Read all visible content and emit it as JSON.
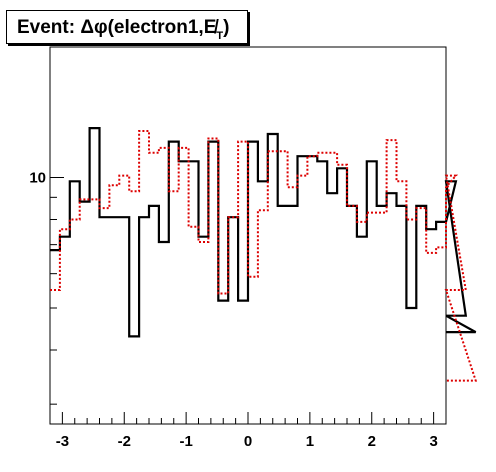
{
  "chart_data": {
    "type": "histogram-step",
    "title": {
      "prefix": "Event: ",
      "symbol": "Δφ(electron1,",
      "met": "E̸",
      "met_sub": "T",
      "suffix": ")"
    },
    "xlabel": "",
    "ylabel": "",
    "xlim": [
      -3.2,
      3.2
    ],
    "ylim": [
      2.7,
      20
    ],
    "log_y": true,
    "x_ticks": [
      {
        "value": -3,
        "label": "-3"
      },
      {
        "value": -2,
        "label": "-2"
      },
      {
        "value": -1,
        "label": "-1"
      },
      {
        "value": 0,
        "label": "0"
      },
      {
        "value": 1,
        "label": "1"
      },
      {
        "value": 2,
        "label": "2"
      },
      {
        "value": 3,
        "label": "3"
      }
    ],
    "y_ticks": [
      {
        "value": 10,
        "label": "10"
      }
    ],
    "bin_edges_start": -3.2,
    "bin_width": 0.16,
    "series": [
      {
        "style": "solid",
        "color": "#000000",
        "values": [
          6.8,
          7.3,
          9.8,
          8.8,
          13,
          8.1,
          8.1,
          8.1,
          4.3,
          8.1,
          8.6,
          7.1,
          12.1,
          10.9,
          10.9,
          7.3,
          12.1,
          5.2,
          8.1,
          5.2,
          12.1,
          9.8,
          12.6,
          8.6,
          8.6,
          11.2,
          11.2,
          10.9,
          9.2,
          10.5,
          8.6,
          7.3,
          10.9,
          8.6,
          9.2,
          8.6,
          5.0,
          8.6,
          7.6,
          7.9,
          7.9,
          9.8,
          4.8,
          4.4
        ]
      },
      {
        "style": "dotted",
        "color": "#dd0000",
        "values": [
          5.5,
          7.6,
          8.0,
          8.9,
          8.9,
          8.5,
          9.6,
          10.1,
          9.3,
          12.8,
          11.4,
          11.7,
          9.3,
          11.7,
          7.7,
          7.1,
          12.3,
          5.4,
          8.1,
          12.1,
          5.9,
          8.4,
          11.5,
          11.5,
          9.5,
          10.1,
          11.2,
          11.4,
          11.4,
          10.7,
          8.6,
          7.9,
          8.3,
          8.3,
          12.2,
          9.8,
          8.0,
          8.5,
          6.7,
          6.9,
          9.5,
          10.1,
          5.5,
          3.4
        ]
      }
    ]
  }
}
